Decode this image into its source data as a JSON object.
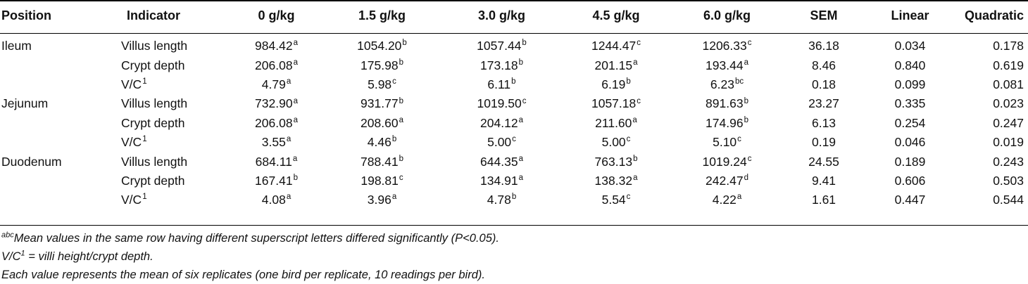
{
  "table": {
    "headers": [
      "Position",
      "Indicator",
      "0 g/kg",
      "1.5 g/kg",
      "3.0 g/kg",
      "4.5 g/kg",
      "6.0 g/kg",
      "SEM",
      "Linear",
      "Quadratic"
    ],
    "rows": [
      {
        "position": "Ileum",
        "indicator": "Villus length",
        "indicator_sup": "",
        "values": [
          {
            "v": "984.42",
            "s": "a"
          },
          {
            "v": "1054.20",
            "s": "b"
          },
          {
            "v": "1057.44",
            "s": "b"
          },
          {
            "v": "1244.47",
            "s": "c"
          },
          {
            "v": "1206.33",
            "s": "c"
          }
        ],
        "sem": "36.18",
        "linear": "0.034",
        "quadratic": "0.178"
      },
      {
        "position": "",
        "indicator": "Crypt depth",
        "indicator_sup": "",
        "values": [
          {
            "v": "206.08",
            "s": "a"
          },
          {
            "v": "175.98",
            "s": "b"
          },
          {
            "v": "173.18",
            "s": "b"
          },
          {
            "v": "201.15",
            "s": "a"
          },
          {
            "v": "193.44",
            "s": "a"
          }
        ],
        "sem": "8.46",
        "linear": "0.840",
        "quadratic": "0.619"
      },
      {
        "position": "",
        "indicator": "V/C",
        "indicator_sup": "1",
        "values": [
          {
            "v": "4.79",
            "s": "a"
          },
          {
            "v": "5.98",
            "s": "c"
          },
          {
            "v": "6.11",
            "s": "b"
          },
          {
            "v": "6.19",
            "s": "b"
          },
          {
            "v": "6.23",
            "s": "bc"
          }
        ],
        "sem": "0.18",
        "linear": "0.099",
        "quadratic": "0.081"
      },
      {
        "position": "Jejunum",
        "indicator": "Villus length",
        "indicator_sup": "",
        "values": [
          {
            "v": "732.90",
            "s": "a"
          },
          {
            "v": "931.77",
            "s": "b"
          },
          {
            "v": "1019.50",
            "s": "c"
          },
          {
            "v": "1057.18",
            "s": "c"
          },
          {
            "v": "891.63",
            "s": "b"
          }
        ],
        "sem": "23.27",
        "linear": "0.335",
        "quadratic": "0.023"
      },
      {
        "position": "",
        "indicator": "Crypt depth",
        "indicator_sup": "",
        "values": [
          {
            "v": "206.08",
            "s": "a"
          },
          {
            "v": "208.60",
            "s": "a"
          },
          {
            "v": "204.12",
            "s": "a"
          },
          {
            "v": "211.60",
            "s": "a"
          },
          {
            "v": "174.96",
            "s": "b"
          }
        ],
        "sem": "6.13",
        "linear": "0.254",
        "quadratic": "0.247"
      },
      {
        "position": "",
        "indicator": "V/C",
        "indicator_sup": "1",
        "values": [
          {
            "v": "3.55",
            "s": "a"
          },
          {
            "v": "4.46",
            "s": "b"
          },
          {
            "v": "5.00",
            "s": "c"
          },
          {
            "v": "5.00",
            "s": "c"
          },
          {
            "v": "5.10",
            "s": "c"
          }
        ],
        "sem": "0.19",
        "linear": "0.046",
        "quadratic": "0.019"
      },
      {
        "position": "Duodenum",
        "indicator": "Villus length",
        "indicator_sup": "",
        "values": [
          {
            "v": "684.11",
            "s": "a"
          },
          {
            "v": "788.41",
            "s": "b"
          },
          {
            "v": "644.35",
            "s": "a"
          },
          {
            "v": "763.13",
            "s": "b"
          },
          {
            "v": "1019.24",
            "s": "c"
          }
        ],
        "sem": "24.55",
        "linear": "0.189",
        "quadratic": "0.243"
      },
      {
        "position": "",
        "indicator": "Crypt depth",
        "indicator_sup": "",
        "values": [
          {
            "v": "167.41",
            "s": "b"
          },
          {
            "v": "198.81",
            "s": "c"
          },
          {
            "v": "134.91",
            "s": "a"
          },
          {
            "v": "138.32",
            "s": "a"
          },
          {
            "v": "242.47",
            "s": "d"
          }
        ],
        "sem": "9.41",
        "linear": "0.606",
        "quadratic": "0.503"
      },
      {
        "position": "",
        "indicator": "V/C",
        "indicator_sup": "1",
        "values": [
          {
            "v": "4.08",
            "s": "a"
          },
          {
            "v": "3.96",
            "s": "a"
          },
          {
            "v": "4.78",
            "s": "b"
          },
          {
            "v": "5.54",
            "s": "c"
          },
          {
            "v": "4.22",
            "s": "a"
          }
        ],
        "sem": "1.61",
        "linear": "0.447",
        "quadratic": "0.544"
      }
    ]
  },
  "footnotes": {
    "f1_sup": "abc",
    "f1_text": "Mean values in the same row having different superscript letters differed significantly (P<0.05).",
    "f2_prefix": "V/C",
    "f2_sup": "1",
    "f2_text": " = villi height/crypt depth.",
    "f3_text": "Each value represents the mean of six replicates (one bird per replicate, 10 readings per bird)."
  }
}
